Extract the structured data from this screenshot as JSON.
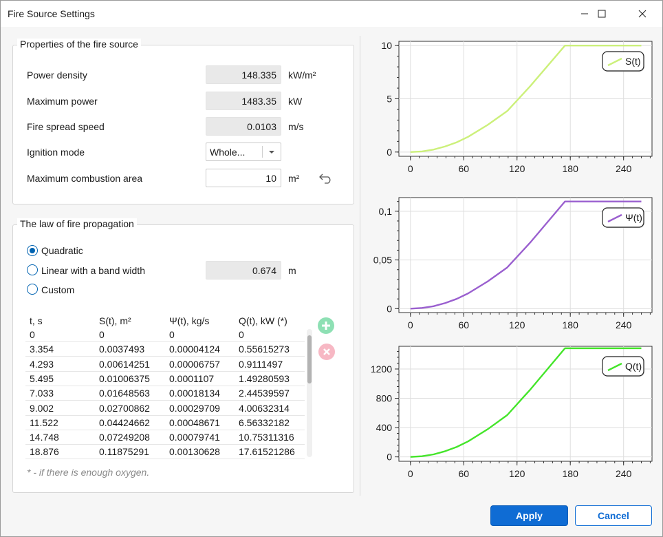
{
  "window": {
    "title": "Fire Source Settings"
  },
  "properties": {
    "group_title": "Properties of the fire source",
    "power_density": {
      "label": "Power density",
      "value": "148.335",
      "unit": "kW/m²"
    },
    "max_power": {
      "label": "Maximum power",
      "value": "1483.35",
      "unit": "kW"
    },
    "spread_speed": {
      "label": "Fire spread speed",
      "value": "0.0103",
      "unit": "m/s"
    },
    "ignition_mode": {
      "label": "Ignition mode",
      "value": "Whole..."
    },
    "max_area": {
      "label": "Maximum combustion area",
      "value": "10",
      "unit": "m²"
    }
  },
  "law": {
    "group_title": "The law of fire propagation",
    "options": [
      {
        "label": "Quadratic",
        "selected": true
      },
      {
        "label": "Linear with a band width",
        "selected": false
      },
      {
        "label": "Custom",
        "selected": false
      }
    ],
    "band_width": {
      "value": "0.674",
      "unit": "m"
    },
    "table": {
      "headers": [
        "t,  s",
        "S(t),  m²",
        "Ψ(t),  kg/s",
        "Q(t),  kW (*)"
      ],
      "rows": [
        [
          "0",
          "0",
          "0",
          "0"
        ],
        [
          "3.354",
          "0.0037493",
          "0.00004124",
          "0.55615273"
        ],
        [
          "4.293",
          "0.00614251",
          "0.00006757",
          "0.9111497"
        ],
        [
          "5.495",
          "0.01006375",
          "0.0001107",
          "1.49280593"
        ],
        [
          "7.033",
          "0.01648563",
          "0.00018134",
          "2.44539597"
        ],
        [
          "9.002",
          "0.02700862",
          "0.00029709",
          "4.00632314"
        ],
        [
          "11.522",
          "0.04424662",
          "0.00048671",
          "6.56332182"
        ],
        [
          "14.748",
          "0.07249208",
          "0.00079741",
          "10.75311316"
        ],
        [
          "18.876",
          "0.11875291",
          "0.00130628",
          "17.61521286"
        ]
      ]
    },
    "note": "* - if there is enough oxygen."
  },
  "buttons": {
    "apply": "Apply",
    "cancel": "Cancel"
  },
  "colors": {
    "accent": "#0f6cd4",
    "s_series": "#ccf07a",
    "psi_series": "#9a5fcf",
    "q_series": "#44e52a"
  },
  "chart_data": [
    {
      "type": "line",
      "series": [
        {
          "name": "S(t)",
          "x": [
            0,
            13,
            26,
            39,
            52,
            65,
            87,
            109,
            135,
            174,
            260
          ],
          "y": [
            0,
            0.06,
            0.23,
            0.52,
            0.91,
            1.43,
            2.55,
            3.85,
            6.2,
            10,
            10
          ]
        }
      ],
      "xticks": [
        "0",
        "60",
        "120",
        "180",
        "240"
      ],
      "yticks": [
        "0",
        "5",
        "10"
      ],
      "xlim": [
        -13,
        272
      ],
      "ylim": [
        -0.4,
        10.4
      ],
      "legend": "top-right"
    },
    {
      "type": "line",
      "series": [
        {
          "name": "Ψ(t)",
          "x": [
            0,
            13,
            26,
            39,
            52,
            65,
            87,
            109,
            135,
            174,
            260
          ],
          "y": [
            0,
            0.0007,
            0.0025,
            0.0057,
            0.01,
            0.0157,
            0.028,
            0.0423,
            0.068,
            0.11,
            0.11
          ]
        }
      ],
      "xticks": [
        "0",
        "60",
        "120",
        "180",
        "240"
      ],
      "yticks": [
        "0",
        "0,05",
        "0,1"
      ],
      "xlim": [
        -13,
        272
      ],
      "ylim": [
        -0.004,
        0.114
      ],
      "legend": "top-right"
    },
    {
      "type": "line",
      "series": [
        {
          "name": "Q(t)",
          "x": [
            0,
            13,
            26,
            39,
            52,
            65,
            87,
            109,
            135,
            174,
            260
          ],
          "y": [
            0,
            8.9,
            34,
            77,
            135,
            212,
            378,
            571,
            920,
            1483,
            1483
          ]
        }
      ],
      "xticks": [
        "0",
        "60",
        "120",
        "180",
        "240"
      ],
      "yticks": [
        "0",
        "400",
        "800",
        "1200"
      ],
      "xlim": [
        -13,
        272
      ],
      "ylim": [
        -60,
        1510
      ],
      "legend": "top-right"
    }
  ]
}
